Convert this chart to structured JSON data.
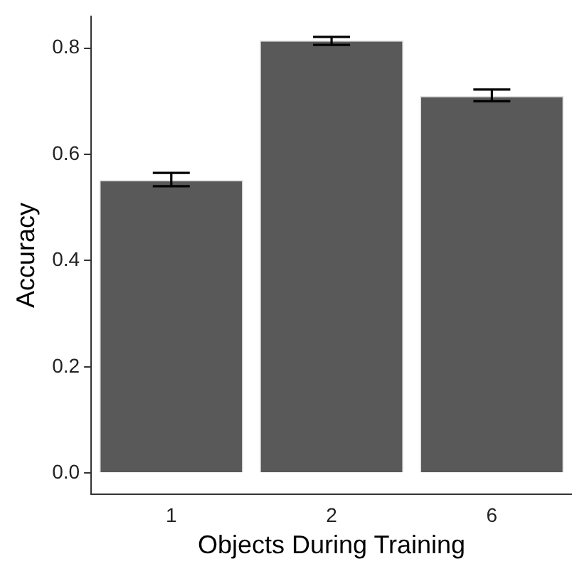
{
  "chart_data": {
    "type": "bar",
    "xlabel": "Objects During Training",
    "ylabel": "Accuracy",
    "categories": [
      "1",
      "2",
      "6"
    ],
    "values": [
      0.552,
      0.815,
      0.71
    ],
    "errors": [
      [
        0.54,
        0.565
      ],
      [
        0.806,
        0.821
      ],
      [
        0.7,
        0.722
      ]
    ],
    "color": "#595959",
    "ylim": [
      -0.04,
      0.86
    ],
    "yticks": [
      {
        "value": 0,
        "label": "0.0"
      },
      {
        "value": 0.2,
        "label": "0.2"
      },
      {
        "value": 0.4,
        "label": "0.4"
      },
      {
        "value": 0.6,
        "label": "0.6"
      },
      {
        "value": 0.8,
        "label": "0.8"
      }
    ],
    "grid": false,
    "legend": false
  }
}
